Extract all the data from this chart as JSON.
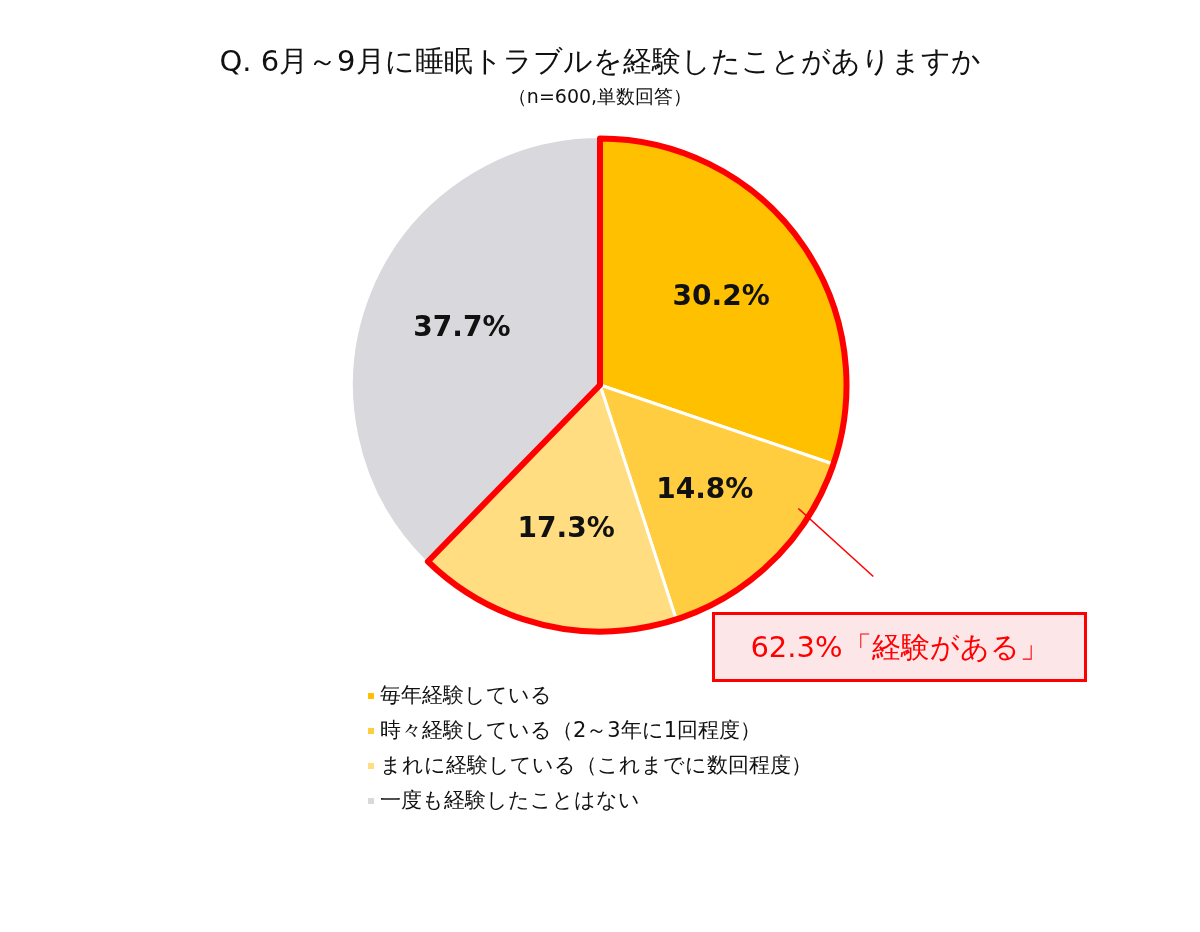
{
  "chart_data": {
    "type": "pie",
    "title": "Q. 6月～9月に睡眠トラブルを経験したことがありますか",
    "subtitle": "（n=600,単数回答）",
    "categories": [
      "毎年経験している",
      "時々経験している（2～3年に1回程度）",
      "まれに経験している（これまでに数回程度）",
      "一度も経験したことはない"
    ],
    "values": [
      30.2,
      14.8,
      17.3,
      37.7
    ],
    "colors": [
      "#ffc000",
      "#ffcd3f",
      "#ffdd80",
      "#d9d8dc"
    ],
    "value_labels": [
      "30.2%",
      "14.8%",
      "17.3%",
      "37.7%"
    ],
    "legend": "bottom",
    "annotations": [
      "62.3%「経験がある」"
    ]
  }
}
